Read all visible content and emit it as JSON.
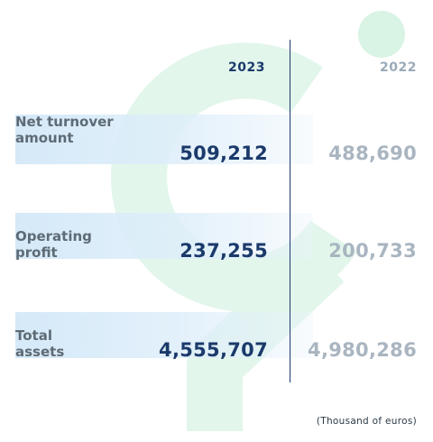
{
  "chart_data": {
    "type": "table",
    "columns": [
      "2023",
      "2022"
    ],
    "rows": [
      {
        "label": "Net turnover amount",
        "values": [
          "509,212",
          "488,690"
        ]
      },
      {
        "label": "Operating profit",
        "values": [
          "237,255",
          "200,733"
        ]
      },
      {
        "label": "Total assets",
        "values": [
          "4,555,707",
          "4,980,286"
        ]
      }
    ],
    "note": "(Thousand of euros)"
  },
  "colors": {
    "current_year": "#1b3a6b",
    "previous_year": "#a9b5c0",
    "labels": "#5e6b75",
    "band": "#d3e8f8",
    "background_logo": "#e0f5ea"
  }
}
